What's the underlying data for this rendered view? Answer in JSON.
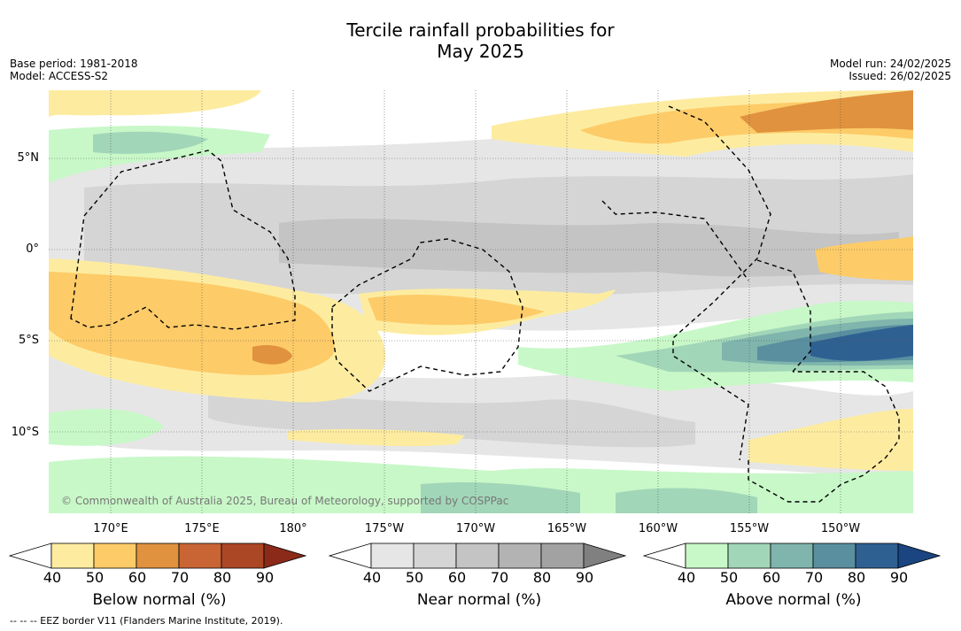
{
  "title": {
    "line1": "Tercile rainfall probabilities for",
    "line2": "May 2025"
  },
  "meta_left": {
    "base_period": "Base period: 1981-2018",
    "model": "Model: ACCESS-S2"
  },
  "meta_right": {
    "model_run": "Model run: 24/02/2025",
    "issued": "Issued: 26/02/2025"
  },
  "map": {
    "copyright": "© Commonwealth of Australia 2025, Bureau of Meteorology, supported by COSPPac",
    "lat_labels": [
      "5°N",
      "0°",
      "5°S",
      "10°S"
    ],
    "lon_labels": [
      "170°E",
      "175°E",
      "180°",
      "175°W",
      "170°W",
      "165°W",
      "160°W",
      "155°W",
      "150°W"
    ]
  },
  "colorbars": [
    {
      "title": "Below normal (%)",
      "ticks": [
        "40",
        "50",
        "60",
        "70",
        "80",
        "90"
      ],
      "colors": [
        "#ffffff",
        "#fdeca0",
        "#fdcb68",
        "#e0923f",
        "#c96535",
        "#ac4726",
        "#8b2a19"
      ]
    },
    {
      "title": "Near normal (%)",
      "ticks": [
        "40",
        "50",
        "60",
        "70",
        "80",
        "90"
      ],
      "colors": [
        "#ffffff",
        "#e6e6e6",
        "#d5d5d5",
        "#c4c4c4",
        "#b3b3b3",
        "#a2a2a2",
        "#808080"
      ]
    },
    {
      "title": "Above normal (%)",
      "ticks": [
        "40",
        "50",
        "60",
        "70",
        "80",
        "90"
      ],
      "colors": [
        "#ffffff",
        "#c8f8c8",
        "#a2d6b8",
        "#7fb5ad",
        "#5a8fa0",
        "#2f6092",
        "#1a4580"
      ]
    }
  ],
  "footnote": "--  --  -- EEZ border V11 (Flanders Marine Institute, 2019)."
}
